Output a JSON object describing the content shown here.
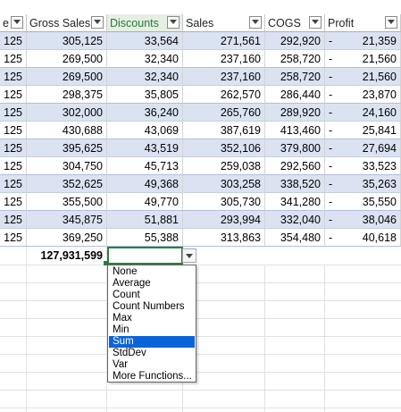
{
  "table": {
    "columns": [
      {
        "label": "e",
        "filter_icon": "filter-dropdown-icon"
      },
      {
        "label": "Gross Sales",
        "filter_icon": "filter-dropdown-icon"
      },
      {
        "label": "Discounts",
        "filter_icon": "filter-dropdown-icon",
        "selected": true
      },
      {
        "label": "Sales",
        "filter_icon": "filter-dropdown-icon"
      },
      {
        "label": "COGS",
        "filter_icon": "filter-dropdown-icon"
      },
      {
        "label": "Profit",
        "filter_icon": "filter-dropdown-icon"
      }
    ],
    "rows": [
      {
        "c0": "125",
        "gross": "305,125",
        "disc": "33,564",
        "sales": "271,561",
        "cogs": "292,920",
        "dash": "-",
        "profit": "21,359"
      },
      {
        "c0": "125",
        "gross": "269,500",
        "disc": "32,340",
        "sales": "237,160",
        "cogs": "258,720",
        "dash": "-",
        "profit": "21,560"
      },
      {
        "c0": "125",
        "gross": "269,500",
        "disc": "32,340",
        "sales": "237,160",
        "cogs": "258,720",
        "dash": "-",
        "profit": "21,560"
      },
      {
        "c0": "125",
        "gross": "298,375",
        "disc": "35,805",
        "sales": "262,570",
        "cogs": "286,440",
        "dash": "-",
        "profit": "23,870"
      },
      {
        "c0": "125",
        "gross": "302,000",
        "disc": "36,240",
        "sales": "265,760",
        "cogs": "289,920",
        "dash": "-",
        "profit": "24,160"
      },
      {
        "c0": "125",
        "gross": "430,688",
        "disc": "43,069",
        "sales": "387,619",
        "cogs": "413,460",
        "dash": "-",
        "profit": "25,841"
      },
      {
        "c0": "125",
        "gross": "395,625",
        "disc": "43,519",
        "sales": "352,106",
        "cogs": "379,800",
        "dash": "-",
        "profit": "27,694"
      },
      {
        "c0": "125",
        "gross": "304,750",
        "disc": "45,713",
        "sales": "259,038",
        "cogs": "292,560",
        "dash": "-",
        "profit": "33,523"
      },
      {
        "c0": "125",
        "gross": "352,625",
        "disc": "49,368",
        "sales": "303,258",
        "cogs": "338,520",
        "dash": "-",
        "profit": "35,263"
      },
      {
        "c0": "125",
        "gross": "355,500",
        "disc": "49,770",
        "sales": "305,730",
        "cogs": "341,280",
        "dash": "-",
        "profit": "35,550"
      },
      {
        "c0": "125",
        "gross": "345,875",
        "disc": "51,881",
        "sales": "293,994",
        "cogs": "332,040",
        "dash": "-",
        "profit": "38,046"
      },
      {
        "c0": "125",
        "gross": "369,250",
        "disc": "55,388",
        "sales": "313,863",
        "cogs": "354,480",
        "dash": "-",
        "profit": "40,618"
      }
    ],
    "total_row": {
      "gross_total": "127,931,599",
      "discounts_total": ""
    }
  },
  "total_function_menu": {
    "items": [
      "None",
      "Average",
      "Count",
      "Count Numbers",
      "Max",
      "Min",
      "Sum",
      "StdDev",
      "Var",
      "More Functions..."
    ],
    "selected": "Sum"
  },
  "colors": {
    "band": "#dbe3f2",
    "selected_header": "#e6efe2",
    "active_cell_border": "#2e7d3e",
    "menu_highlight": "#0a64d8"
  }
}
